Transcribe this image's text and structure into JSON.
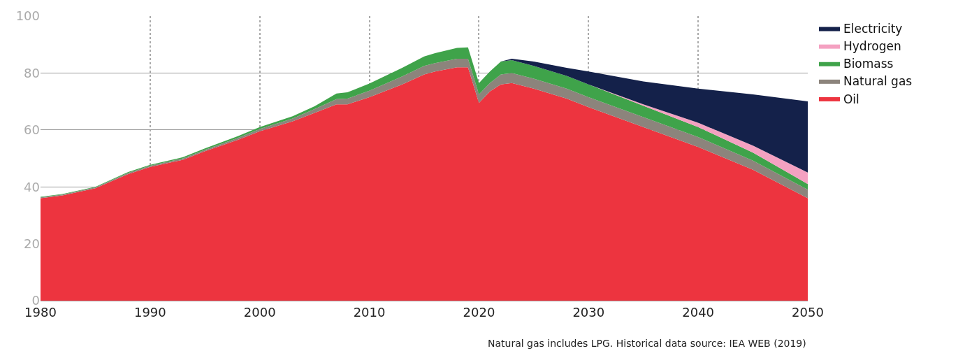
{
  "chart_data": {
    "type": "area",
    "stacked": true,
    "x": [
      1980,
      1982,
      1985,
      1988,
      1990,
      1993,
      1995,
      1998,
      2000,
      2003,
      2005,
      2007,
      2008,
      2010,
      2013,
      2015,
      2016,
      2018,
      2019,
      2020,
      2021,
      2022,
      2023,
      2025,
      2028,
      2030,
      2035,
      2040,
      2045,
      2050
    ],
    "series": [
      {
        "name": "Oil",
        "color": "#ed343f",
        "values": [
          36,
          37,
          39.5,
          44.5,
          47,
          49.5,
          52.5,
          56.5,
          59.5,
          63,
          66,
          69,
          69,
          71.5,
          76,
          79.5,
          80.5,
          82,
          82,
          69.5,
          73.5,
          76,
          76.5,
          74.5,
          71,
          68,
          61,
          54,
          46,
          36
        ]
      },
      {
        "name": "Natural gas",
        "color": "#8c847c",
        "values": [
          0.3,
          0.3,
          0.3,
          0.4,
          0.4,
          0.5,
          0.5,
          0.7,
          0.8,
          1,
          1.3,
          1.8,
          2,
          2.3,
          2.8,
          3,
          3,
          3,
          3,
          3,
          3,
          3.5,
          3.5,
          3.5,
          3.5,
          3.5,
          3.5,
          3.5,
          3.2,
          3
        ]
      },
      {
        "name": "Biomass",
        "color": "#3fa34a",
        "values": [
          0.2,
          0.2,
          0.2,
          0.3,
          0.3,
          0.4,
          0.5,
          0.6,
          0.7,
          0.8,
          1,
          2,
          2.2,
          2.5,
          3,
          3.3,
          3.5,
          3.8,
          4,
          4,
          4,
          4.5,
          4.5,
          4.5,
          4.5,
          4.5,
          4,
          3.5,
          2.8,
          2
        ]
      },
      {
        "name": "Hydrogen",
        "color": "#f4a1c1",
        "values": [
          null,
          null,
          null,
          null,
          null,
          null,
          null,
          null,
          null,
          null,
          null,
          null,
          null,
          null,
          null,
          null,
          null,
          null,
          null,
          null,
          null,
          null,
          null,
          null,
          null,
          0,
          0.5,
          1.5,
          2.5,
          4
        ]
      },
      {
        "name": "Electricity",
        "color": "#14214a",
        "values": [
          null,
          null,
          null,
          null,
          null,
          null,
          null,
          null,
          null,
          null,
          null,
          null,
          null,
          null,
          null,
          null,
          null,
          null,
          null,
          null,
          null,
          0,
          0.5,
          1.5,
          2.8,
          4.5,
          8,
          12,
          18,
          25
        ]
      }
    ],
    "xlim": [
      1980,
      2050
    ],
    "xticks": [
      1980,
      1990,
      2000,
      2010,
      2020,
      2030,
      2040,
      2050
    ],
    "ylim": [
      0,
      100
    ],
    "yticks": [
      0,
      20,
      40,
      60,
      80,
      100
    ],
    "grid": true,
    "legend": "top right",
    "annotations": [
      "Natural gas includes LPG. Historical data source: IEA WEB (2019)"
    ]
  }
}
